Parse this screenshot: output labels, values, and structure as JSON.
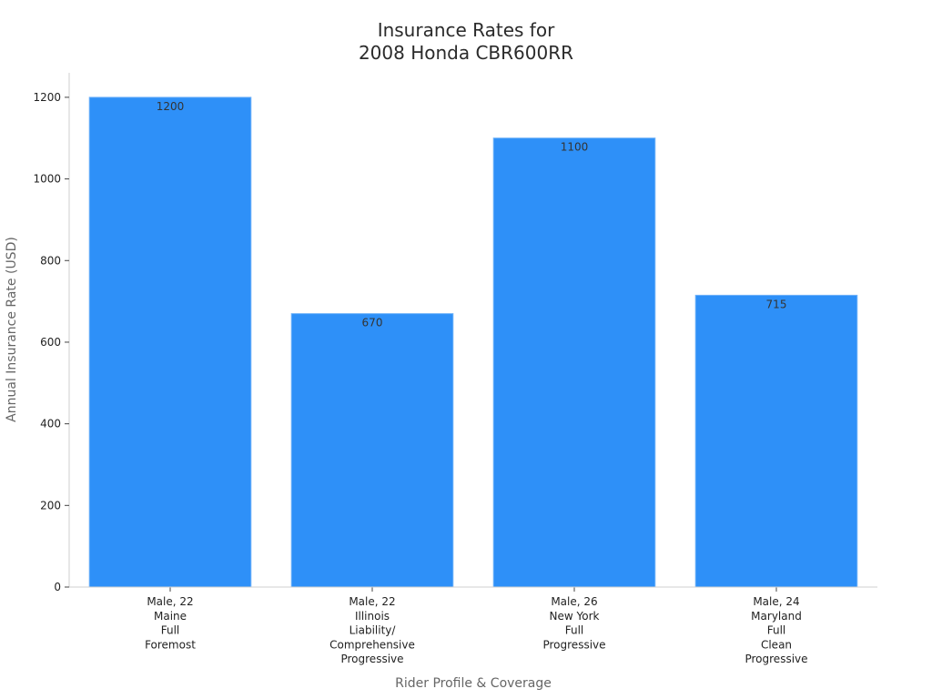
{
  "chart_data": {
    "type": "bar",
    "title_lines": [
      "Insurance Rates for",
      "2008 Honda CBR600RR"
    ],
    "xlabel": "Rider Profile & Coverage",
    "ylabel": "Annual Insurance Rate (USD)",
    "categories": [
      [
        "Male, 22",
        "Maine",
        "Full",
        "Foremost"
      ],
      [
        "Male, 22",
        "Illinois",
        "Liability/",
        "Comprehensive",
        "Progressive"
      ],
      [
        "Male, 26",
        "New York",
        "Full",
        "Progressive"
      ],
      [
        "Male, 24",
        "Maryland",
        "Full",
        "Clean",
        "Progressive"
      ]
    ],
    "values": [
      1200,
      670,
      1100,
      715
    ],
    "data_labels": [
      "1200",
      "670",
      "1100",
      "715"
    ],
    "ylim": [
      0,
      1260
    ],
    "yticks": [
      0,
      200,
      400,
      600,
      800,
      1000,
      1200
    ],
    "grid": false,
    "legend": "none",
    "colors": {
      "bar": "#2e90f8",
      "bar_edge": "#6fb2f9",
      "axis": "#cfcfcf",
      "text": "#222222",
      "label": "#666666",
      "data_label": "#333333"
    }
  }
}
